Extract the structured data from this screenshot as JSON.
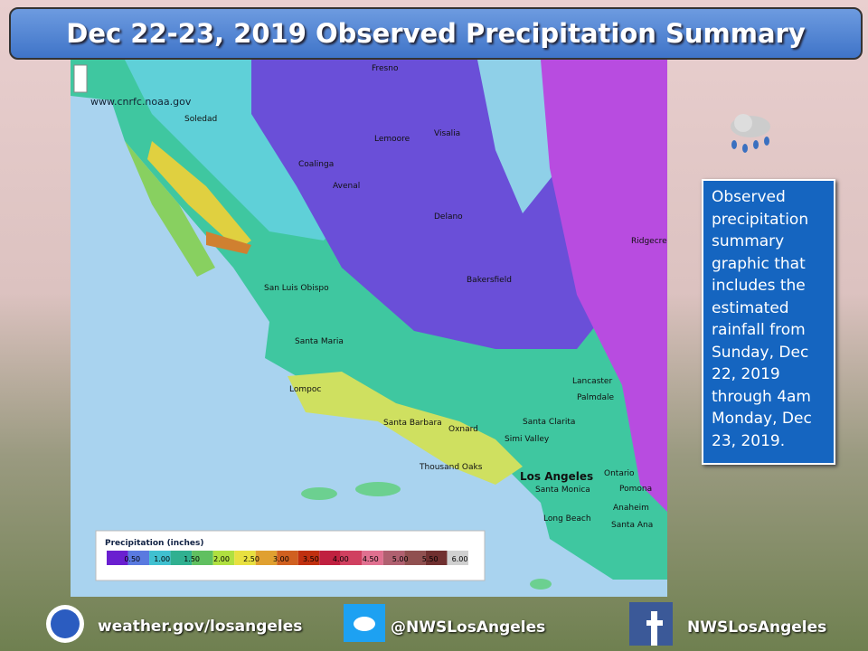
{
  "header": {
    "title": "Dec 22-23, 2019 Observed Precipitation Summary"
  },
  "map": {
    "source": "www.cnrfc.noaa.gov",
    "places": [
      "Fresno",
      "Visalia",
      "Lemoore",
      "Soledad",
      "Coalinga",
      "Avenal",
      "Delano",
      "Bakersfield",
      "Ridgecrest",
      "San Luis Obispo",
      "Santa Maria",
      "Lompoc",
      "Santa Barbara",
      "Oxnard",
      "Thousand Oaks",
      "Simi Valley",
      "Santa Clarita",
      "Lancaster",
      "Palmdale",
      "Los Angeles",
      "Santa Monica",
      "Long Beach",
      "Anaheim",
      "Santa Ana",
      "Ontario",
      "Pomona"
    ],
    "legend": {
      "title": "Precipitation (inches)",
      "labels": [
        "0.50",
        "1.00",
        "1.50",
        "2.00",
        "2.50",
        "3.00",
        "3.50",
        "4.00",
        "4.50",
        "5.00",
        "5.50",
        "6.00"
      ]
    }
  },
  "note": {
    "text": "Observed precipitation summary graphic that includes the estimated rainfall from Sunday, Dec 22, 2019 through 4am Monday, Dec 23, 2019."
  },
  "footer": {
    "website": "weather.gov/losangeles",
    "twitter": "@NWSLosAngeles",
    "facebook": "NWSLosAngeles"
  }
}
